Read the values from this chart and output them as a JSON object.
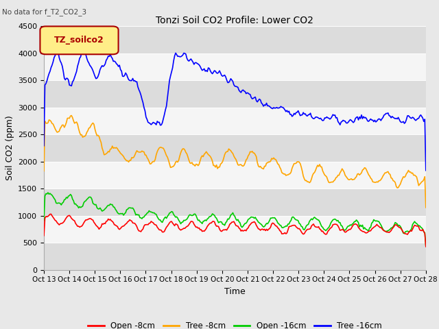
{
  "title": "Tonzi Soil CO2 Profile: Lower CO2",
  "subtitle": "No data for f_T2_CO2_3",
  "ylabel": "Soil CO2 (ppm)",
  "xlabel": "Time",
  "ylim": [
    0,
    4500
  ],
  "yticks": [
    0,
    500,
    1000,
    1500,
    2000,
    2500,
    3000,
    3500,
    4000,
    4500
  ],
  "xtick_labels": [
    "Oct 13",
    "Oct 14",
    "Oct 15",
    "Oct 16",
    "Oct 17",
    "Oct 18",
    "Oct 19",
    "Oct 20",
    "Oct 21",
    "Oct 22",
    "Oct 23",
    "Oct 24",
    "Oct 25",
    "Oct 26",
    "Oct 27",
    "Oct 28"
  ],
  "legend_labels": [
    "Open -8cm",
    "Tree -8cm",
    "Open -16cm",
    "Tree -16cm"
  ],
  "legend_colors": [
    "#ff0000",
    "#ffa500",
    "#00cc00",
    "#0000ff"
  ],
  "box_label": "TZ_soilco2",
  "box_color": "#ffee88",
  "box_text_color": "#aa0000",
  "background_color": "#e8e8e8",
  "plot_bg_color": "#f5f5f5",
  "stripe_color": "#dcdcdc",
  "n_points": 375
}
